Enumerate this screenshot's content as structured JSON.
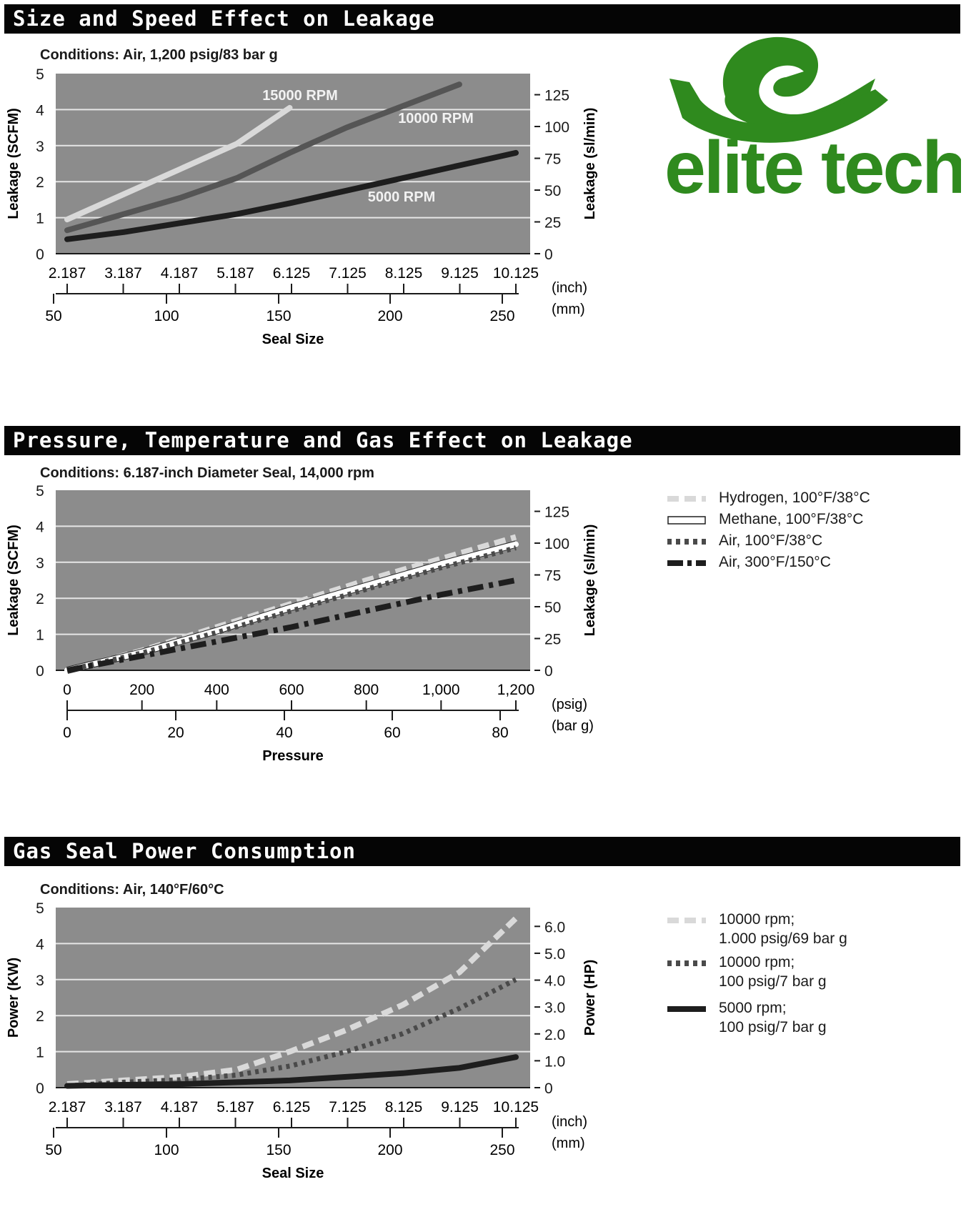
{
  "brand": {
    "name": "elite tech",
    "color": "#2f8a1e"
  },
  "colors": {
    "plot_bg": "#8c8c8c",
    "grid": "#e6e6e6",
    "light_gray": "#d9d9d9",
    "medium_gray": "#555555",
    "dark": "#1e1e1e",
    "white": "#ffffff"
  },
  "charts": [
    {
      "title": "Size and Speed Effect on Leakage",
      "conditions": "Conditions: Air, 1,200 psig/83 bar g",
      "left_axis": {
        "label": "Leakage (SCFM)",
        "ticks": [
          "0",
          "1",
          "2",
          "3",
          "4",
          "5"
        ]
      },
      "right_axis": {
        "label": "Leakage (sl/min)",
        "ticks": [
          "0",
          "25",
          "50",
          "75",
          "100",
          "125"
        ]
      },
      "top_x": {
        "ticks": [
          "2.187",
          "3.187",
          "4.187",
          "5.187",
          "6.125",
          "7.125",
          "8.125",
          "9.125",
          "10.125"
        ],
        "unit": "(inch)"
      },
      "bottom_x": {
        "ticks": [
          "50",
          "100",
          "150",
          "200",
          "250"
        ],
        "unit": "(mm)"
      },
      "xlabel": "Seal Size"
    },
    {
      "title": "Pressure, Temperature and Gas Effect on Leakage",
      "conditions": "Conditions: 6.187-inch Diameter Seal, 14,000 rpm",
      "left_axis": {
        "label": "Leakage (SCFM)",
        "ticks": [
          "0",
          "1",
          "2",
          "3",
          "4",
          "5"
        ]
      },
      "right_axis": {
        "label": "Leakage (sl/min)",
        "ticks": [
          "0",
          "25",
          "50",
          "75",
          "100",
          "125"
        ]
      },
      "top_x": {
        "ticks": [
          "0",
          "200",
          "400",
          "600",
          "800",
          "1,000",
          "1,200"
        ],
        "unit": "(psig)"
      },
      "bottom_x": {
        "ticks": [
          "0",
          "20",
          "40",
          "60",
          "80"
        ],
        "unit": "(bar g)"
      },
      "xlabel": "Pressure",
      "legend": [
        "Hydrogen, 100°F/38°C",
        "Methane, 100°F/38°C",
        "Air, 100°F/38°C",
        "Air, 300°F/150°C"
      ]
    },
    {
      "title": "Gas Seal Power Consumption",
      "conditions": "Conditions: Air, 140°F/60°C",
      "left_axis": {
        "label": "Power (KW)",
        "ticks": [
          "0",
          "1",
          "2",
          "3",
          "4",
          "5"
        ]
      },
      "right_axis": {
        "label": "Power (HP)",
        "ticks": [
          "0",
          "1.0",
          "2.0",
          "3.0",
          "4.0",
          "5.0",
          "6.0"
        ]
      },
      "top_x": {
        "ticks": [
          "2.187",
          "3.187",
          "4.187",
          "5.187",
          "6.125",
          "7.125",
          "8.125",
          "9.125",
          "10.125"
        ],
        "unit": "(inch)"
      },
      "bottom_x": {
        "ticks": [
          "50",
          "100",
          "150",
          "200",
          "250"
        ],
        "unit": "(mm)"
      },
      "xlabel": "Seal Size",
      "legend": [
        {
          "line1": "10000 rpm;",
          "line2": "1.000 psig/69 bar g"
        },
        {
          "line1": "10000 rpm;",
          "line2": "100 psig/7 bar g"
        },
        {
          "line1": "5000 rpm;",
          "line2": "100 psig/7 bar g"
        }
      ]
    }
  ],
  "chart_data": [
    {
      "type": "line",
      "title": "Size and Speed Effect on Leakage",
      "xlabel": "Seal Size",
      "ylabel": "Leakage (SCFM)",
      "y2label": "Leakage (sl/min)",
      "xlim": [
        2.187,
        10.125
      ],
      "ylim": [
        0,
        5
      ],
      "y2lim": [
        0,
        141.6
      ],
      "grid": true,
      "series": [
        {
          "name": "15000 RPM",
          "style": "solid",
          "color": "#d9d9d9",
          "x": [
            2.187,
            3.187,
            4.187,
            5.187,
            6.125
          ],
          "y": [
            0.95,
            1.65,
            2.35,
            3.05,
            4.05
          ]
        },
        {
          "name": "10000 RPM",
          "style": "solid",
          "color": "#555555",
          "x": [
            2.187,
            3.187,
            4.187,
            5.187,
            6.125,
            7.125,
            8.125,
            9.125
          ],
          "y": [
            0.65,
            1.1,
            1.55,
            2.1,
            2.8,
            3.5,
            4.1,
            4.7
          ]
        },
        {
          "name": "5000 RPM",
          "style": "solid",
          "color": "#1e1e1e",
          "x": [
            2.187,
            3.187,
            4.187,
            5.187,
            6.125,
            7.125,
            8.125,
            9.125,
            10.125
          ],
          "y": [
            0.4,
            0.6,
            0.85,
            1.1,
            1.4,
            1.75,
            2.1,
            2.45,
            2.8
          ]
        }
      ]
    },
    {
      "type": "line",
      "title": "Pressure, Temperature and Gas Effect on Leakage",
      "xlabel": "Pressure",
      "ylabel": "Leakage (SCFM)",
      "y2label": "Leakage (sl/min)",
      "xlim": [
        0,
        1200
      ],
      "ylim": [
        0,
        5
      ],
      "y2lim": [
        0,
        141.6
      ],
      "grid": true,
      "series": [
        {
          "name": "Hydrogen, 100°F/38°C",
          "style": "dashed",
          "color": "#d9d9d9",
          "x": [
            0,
            200,
            400,
            600,
            800,
            1000,
            1200
          ],
          "y": [
            0,
            0.55,
            1.2,
            1.85,
            2.5,
            3.1,
            3.7
          ]
        },
        {
          "name": "Methane, 100°F/38°C",
          "style": "solid",
          "color": "#ffffff",
          "x": [
            0,
            200,
            400,
            600,
            800,
            1000,
            1200
          ],
          "y": [
            0,
            0.5,
            1.1,
            1.75,
            2.35,
            2.95,
            3.5
          ]
        },
        {
          "name": "Air, 100°F/38°C",
          "style": "dotted",
          "color": "#4a4a4a",
          "x": [
            0,
            200,
            400,
            600,
            800,
            1000,
            1200
          ],
          "y": [
            0,
            0.48,
            1.05,
            1.65,
            2.25,
            2.85,
            3.4
          ]
        },
        {
          "name": "Air, 300°F/150°C",
          "style": "dash-dot",
          "color": "#1e1e1e",
          "x": [
            0,
            200,
            400,
            600,
            800,
            1000,
            1200
          ],
          "y": [
            0,
            0.4,
            0.8,
            1.2,
            1.65,
            2.1,
            2.5
          ]
        }
      ]
    },
    {
      "type": "line",
      "title": "Gas Seal Power Consumption",
      "xlabel": "Seal Size",
      "ylabel": "Power (KW)",
      "y2label": "Power (HP)",
      "xlim": [
        2.187,
        10.125
      ],
      "ylim": [
        0,
        5
      ],
      "y2lim": [
        0,
        6.7
      ],
      "grid": true,
      "series": [
        {
          "name": "10000 rpm; 1.000 psig/69 bar g",
          "style": "dashed",
          "color": "#d9d9d9",
          "x": [
            2.187,
            3.187,
            4.187,
            5.187,
            6.125,
            7.125,
            8.125,
            9.125,
            10.125
          ],
          "y": [
            0.1,
            0.2,
            0.3,
            0.5,
            1.0,
            1.6,
            2.3,
            3.2,
            4.7
          ]
        },
        {
          "name": "10000 rpm; 100 psig/7 bar g",
          "style": "dotted",
          "color": "#4a4a4a",
          "x": [
            2.187,
            3.187,
            4.187,
            5.187,
            6.125,
            7.125,
            8.125,
            9.125,
            10.125
          ],
          "y": [
            0.05,
            0.15,
            0.22,
            0.35,
            0.6,
            1.0,
            1.5,
            2.2,
            3.0
          ]
        },
        {
          "name": "5000 rpm; 100 psig/7 bar g",
          "style": "solid",
          "color": "#1e1e1e",
          "x": [
            2.187,
            3.187,
            4.187,
            5.187,
            6.125,
            7.125,
            8.125,
            9.125,
            10.125
          ],
          "y": [
            0.05,
            0.08,
            0.1,
            0.15,
            0.2,
            0.3,
            0.4,
            0.55,
            0.85
          ]
        }
      ]
    }
  ]
}
